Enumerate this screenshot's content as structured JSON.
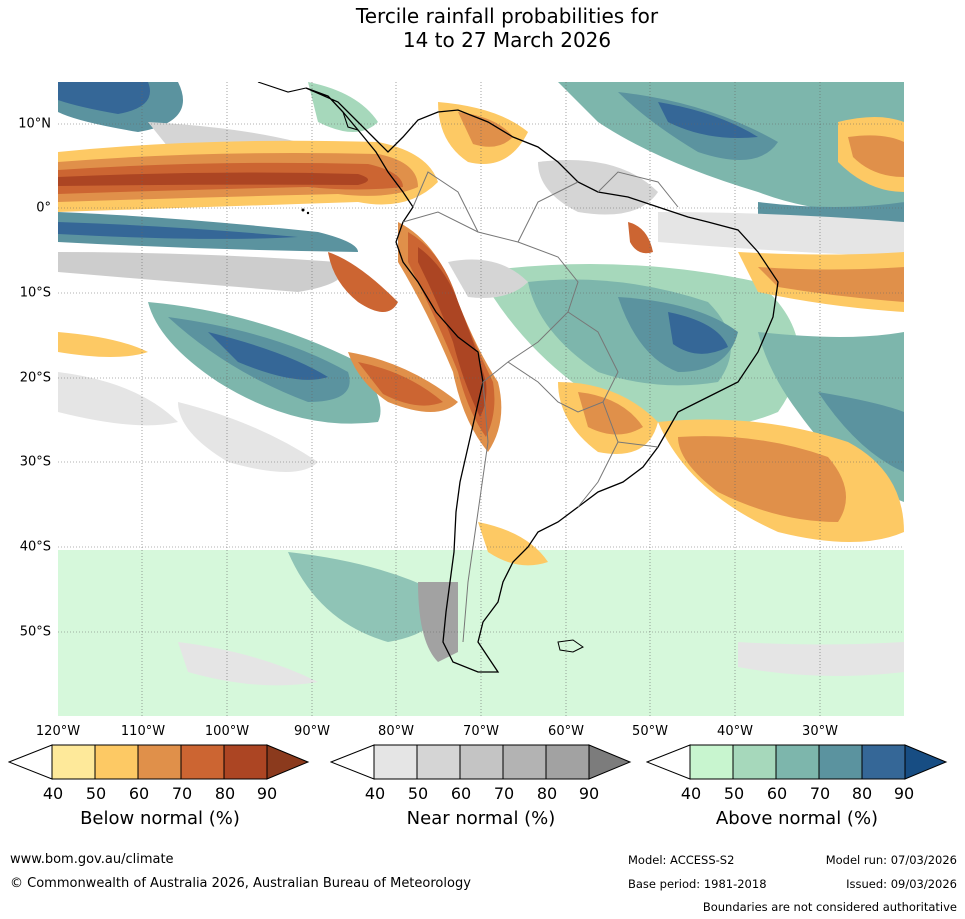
{
  "title_line1": "Tercile rainfall probabilities for",
  "title_line2": "14 to 27 March 2026",
  "lat_labels": [
    "10°N",
    "0°",
    "10°S",
    "20°S",
    "30°S",
    "40°S",
    "50°S"
  ],
  "lon_labels": [
    "120°W",
    "110°W",
    "100°W",
    "90°W",
    "80°W",
    "70°W",
    "60°W",
    "50°W",
    "40°W",
    "30°W"
  ],
  "legends": {
    "below": {
      "title": "Below normal (%)",
      "ticks": [
        "40",
        "50",
        "60",
        "70",
        "80",
        "90"
      ],
      "colors": [
        "#fee99a",
        "#fdc964",
        "#e0904a",
        "#cc6532",
        "#ac4523",
        "#8b3a1d"
      ]
    },
    "near": {
      "title": "Near normal (%)",
      "ticks": [
        "40",
        "50",
        "60",
        "70",
        "80",
        "90"
      ],
      "colors": [
        "#e5e5e5",
        "#d5d5d5",
        "#c4c4c4",
        "#b3b3b3",
        "#a2a2a2",
        "#7c7c7c"
      ]
    },
    "above": {
      "title": "Above normal (%)",
      "ticks": [
        "40",
        "50",
        "60",
        "70",
        "80",
        "90"
      ],
      "colors": [
        "#c8f5cf",
        "#a6d8bb",
        "#7db6ac",
        "#5b939f",
        "#356797",
        "#174d83"
      ]
    }
  },
  "footer": {
    "website": "www.bom.gov.au/climate",
    "copyright": "© Commonwealth of Australia 2026, Australian Bureau of Meteorology",
    "model": "Model: ACCESS-S2",
    "base_period": "Base period: 1981-2018",
    "model_run": "Model run: 07/03/2026",
    "issued": "Issued: 09/03/2026",
    "boundaries_note": "Boundaries are not considered authoritative"
  }
}
